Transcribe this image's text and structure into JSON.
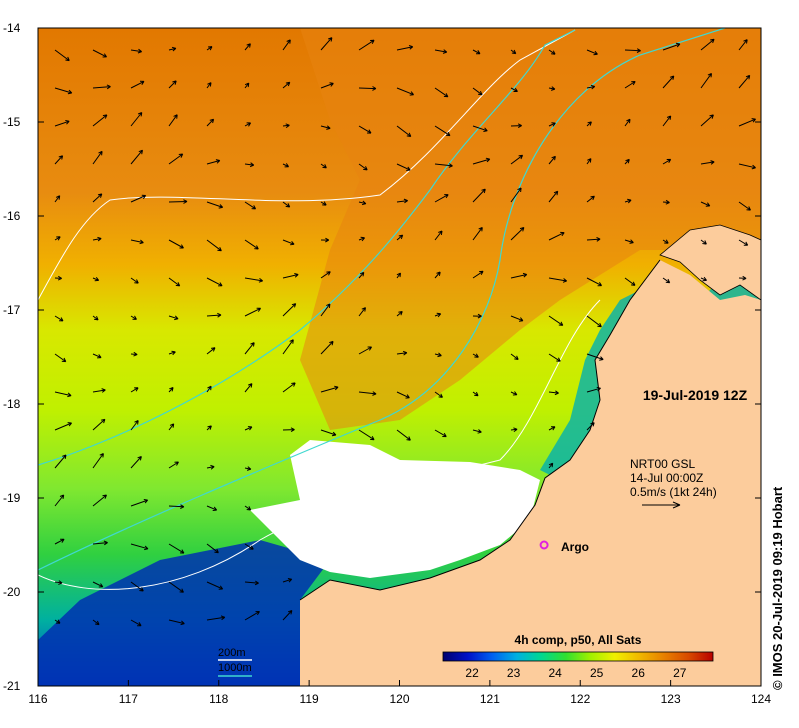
{
  "map": {
    "date_label": "19-Jul-2019 12Z",
    "product_label": "4h comp, p50, All Sats",
    "credit": "© IMOS 20-Jul-2019 09:19 Hobart",
    "lon_ticks": [
      "116",
      "117",
      "118",
      "119",
      "120",
      "121",
      "122",
      "123",
      "124"
    ],
    "lat_ticks": [
      "-14",
      "-15",
      "-16",
      "-17",
      "-18",
      "-19",
      "-20",
      "-21"
    ],
    "lon_range": [
      116,
      124
    ],
    "lat_range": [
      -21,
      -14
    ],
    "current_info": [
      "NRT00 GSL",
      "14-Jul 00:00Z",
      "0.5m/s (1kt 24h)"
    ],
    "argo_label": "Argo",
    "argo_position": {
      "lon": 121.6,
      "lat": -19.5
    },
    "legend_depth": [
      {
        "label": "200m",
        "color": "#ffffff"
      },
      {
        "label": "1000m",
        "color": "#40d8d0"
      }
    ],
    "colorbar": {
      "ticks": [
        "22",
        "23",
        "24",
        "25",
        "26",
        "27"
      ],
      "colors": [
        "#00006e",
        "#0010c8",
        "#0060f0",
        "#00b0e0",
        "#00d890",
        "#30e030",
        "#a0f000",
        "#f0f000",
        "#f0b800",
        "#e88000",
        "#d84a00",
        "#b80000"
      ]
    },
    "colors": {
      "land": "#fccc9c",
      "cloud": "#ffffff",
      "isobath_200": "#ffffff",
      "isobath_1000": "#40d8d0",
      "argo": "#e020e0"
    }
  }
}
